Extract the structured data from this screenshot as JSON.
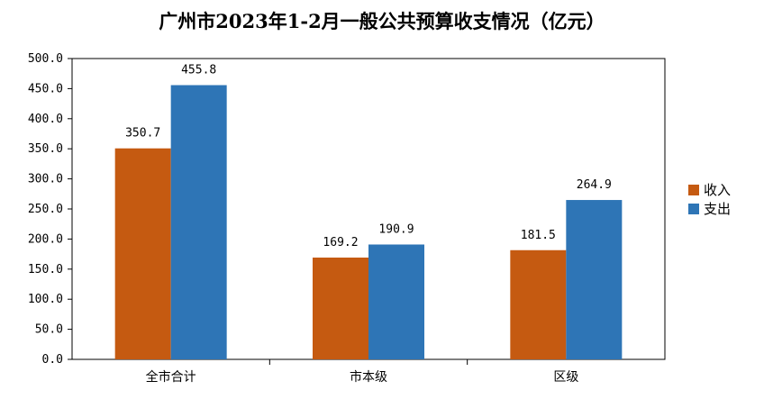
{
  "chart_data": {
    "type": "bar",
    "title": "广州市2023年1-2月一般公共预算收支情况（亿元）",
    "categories": [
      "全市合计",
      "市本级",
      "区级"
    ],
    "series": [
      {
        "name": "收入",
        "values": [
          350.7,
          169.2,
          181.5
        ],
        "color": "#c55a11"
      },
      {
        "name": "支出",
        "values": [
          455.8,
          190.9,
          264.9
        ],
        "color": "#2e75b6"
      }
    ],
    "data_labels": [
      [
        "350.7",
        "169.2",
        "181.5"
      ],
      [
        "455.8",
        "190.9",
        "264.9"
      ]
    ],
    "y_ticks": [
      "0.0",
      "50.0",
      "100.0",
      "150.0",
      "200.0",
      "250.0",
      "300.0",
      "350.0",
      "400.0",
      "450.0",
      "500.0"
    ],
    "ylim": [
      0,
      500
    ],
    "grid": false,
    "legend": "right"
  }
}
